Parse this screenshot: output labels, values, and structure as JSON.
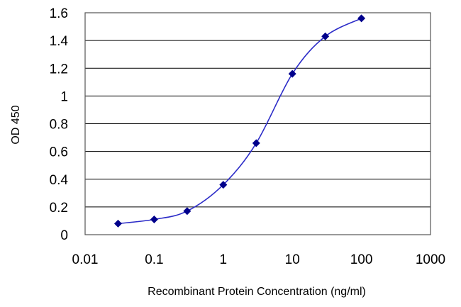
{
  "chart_data": {
    "type": "scatter",
    "title": "",
    "xlabel": "Recombinant Protein Concentration (ng/ml)",
    "ylabel": "OD 450",
    "x_scale": "log",
    "xlim": [
      0.01,
      1000
    ],
    "ylim": [
      0,
      1.6
    ],
    "x_ticks": [
      "0.01",
      "0.1",
      "1",
      "10",
      "100",
      "1000"
    ],
    "x_tick_values": [
      0.01,
      0.1,
      1,
      10,
      100,
      1000
    ],
    "y_ticks": [
      "0",
      "0.2",
      "0.4",
      "0.6",
      "0.8",
      "1",
      "1.2",
      "1.4",
      "1.6"
    ],
    "y_tick_values": [
      0,
      0.2,
      0.4,
      0.6,
      0.8,
      1.0,
      1.2,
      1.4,
      1.6
    ],
    "grid": "horizontal",
    "legend": "none",
    "series": [
      {
        "x": [
          0.03,
          0.1,
          0.3,
          1,
          3,
          10,
          30,
          100
        ],
        "y": [
          0.08,
          0.11,
          0.17,
          0.36,
          0.66,
          1.16,
          1.43,
          1.56
        ],
        "line": "smooth fitted curve",
        "marker": "diamond",
        "color": "#00008b"
      }
    ],
    "colors": {
      "plot_border": "#555555",
      "grid": "#000000",
      "series": "#00008b",
      "curve": "#2c2cc8"
    }
  }
}
